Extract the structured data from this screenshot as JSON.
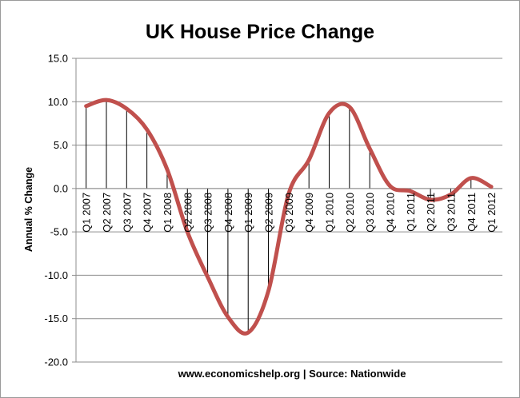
{
  "chart_data": {
    "type": "line",
    "title": "UK House Price Change",
    "xlabel": "www.economicshelp.org | Source: Nationwide",
    "ylabel": "Annual % Change",
    "ylim": [
      -20,
      15
    ],
    "yticks": [
      "15.0",
      "10.0",
      "5.0",
      "0.0",
      "-5.0",
      "-10.0",
      "-15.0",
      "-20.0"
    ],
    "grid": true,
    "smooth": true,
    "drop_lines": true,
    "categories": [
      "Q1 2007",
      "Q2 2007",
      "Q3 2007",
      "Q4 2007",
      "Q1 2008",
      "Q2 2008",
      "Q3 2008",
      "Q4 2008",
      "Q1 2009",
      "Q2 2009",
      "Q3 2009",
      "Q4 2009",
      "Q1 2010",
      "Q2 2010",
      "Q3 2010",
      "Q4 2010",
      "Q1 2011",
      "Q2 2011",
      "Q3 2011",
      "Q4 2011",
      "Q1 2012"
    ],
    "series": [
      {
        "color": "#c0504d",
        "values": [
          9.5,
          10.2,
          9.2,
          6.8,
          2.2,
          -5.0,
          -10.2,
          -14.8,
          -16.6,
          -11.8,
          -0.6,
          3.3,
          8.7,
          9.4,
          4.6,
          0.3,
          -0.3,
          -1.3,
          -0.7,
          1.2,
          0.2
        ]
      }
    ]
  }
}
